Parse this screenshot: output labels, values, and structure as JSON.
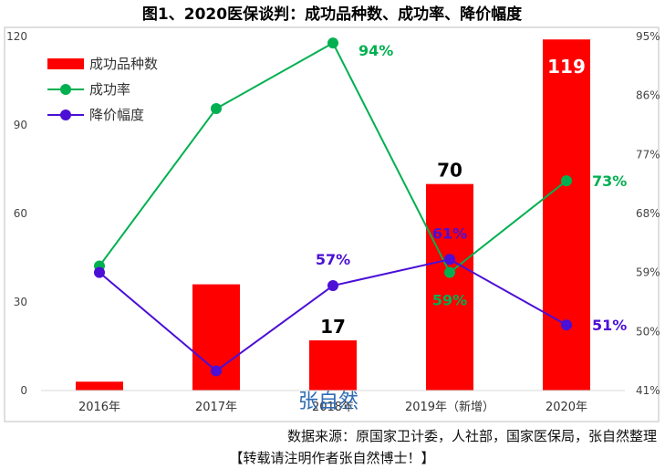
{
  "chart_data": {
    "type": "bar",
    "title": "图1、2020医保谈判：成功品种数、成功率、降价幅度",
    "categories": [
      "2016年",
      "2017年",
      "2018年",
      "2019年（新增）",
      "2020年"
    ],
    "series": [
      {
        "name": "成功品种数",
        "kind": "bar",
        "axis": "left",
        "color": "#ff0000",
        "values": [
          3,
          36,
          17,
          70,
          119
        ],
        "labels": [
          "",
          "",
          "17",
          "70",
          "119"
        ],
        "label_colors": [
          "",
          "",
          "#000000",
          "#000000",
          "#ffffff"
        ]
      },
      {
        "name": "成功率",
        "kind": "line",
        "axis": "right",
        "color": "#00b050",
        "values": [
          60,
          84,
          94,
          59,
          73
        ],
        "labels": [
          "",
          "",
          "94%",
          "59%",
          "73%"
        ]
      },
      {
        "name": "降价幅度",
        "kind": "line",
        "axis": "right",
        "color": "#4b0fd6",
        "values": [
          59,
          44,
          57,
          61,
          51
        ],
        "labels": [
          "",
          "",
          "57%",
          "61%",
          "51%"
        ]
      }
    ],
    "y_left": {
      "min": 0,
      "max": 120,
      "ticks": [
        0,
        30,
        60,
        90,
        120
      ]
    },
    "y_right": {
      "min": 41,
      "max": 95,
      "ticks": [
        "41%",
        "50%",
        "59%",
        "68%",
        "77%",
        "86%",
        "95%"
      ]
    },
    "legend_position": "top-left"
  },
  "watermark": "张自然",
  "source_note": "数据来源：原国家卫计委，人社部，国家医保局，张自然整理",
  "repost_note": "【转载请注明作者张自然博士！】"
}
